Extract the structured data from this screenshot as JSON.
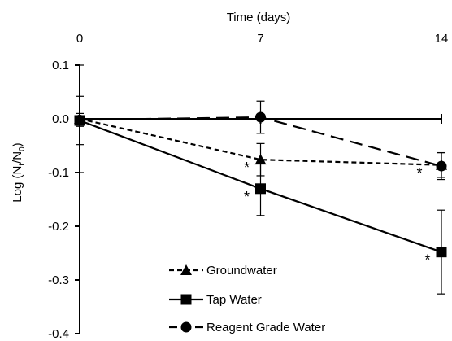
{
  "chart_data": {
    "type": "line",
    "xlabel": "Time (days)",
    "ylabel_main": "Log (N",
    "ylabel_sub_t": "t",
    "ylabel_mid": "/N",
    "ylabel_sub_0": "0",
    "ylabel_end": ")",
    "x": [
      0,
      7,
      14
    ],
    "xticks": [
      "0",
      "7",
      "14"
    ],
    "xlim": [
      0,
      14
    ],
    "ylim": [
      -0.4,
      0.1
    ],
    "yticks": [
      "0.1",
      "0.0",
      "-0.1",
      "-0.2",
      "-0.3",
      "-0.4"
    ],
    "ytick_values": [
      0.1,
      0.0,
      -0.1,
      -0.2,
      -0.3,
      -0.4
    ],
    "x_axis_position": "top",
    "grid": false,
    "legend_position": "bottom-center",
    "series": [
      {
        "name": "Groundwater",
        "marker": "triangle",
        "line": "short-dash",
        "values": [
          0.0,
          -0.076,
          -0.086
        ],
        "error": [
          0.1,
          0.03,
          0.023
        ],
        "significance": [
          "",
          "*",
          "*"
        ]
      },
      {
        "name": "Tap Water",
        "marker": "square",
        "line": "solid",
        "values": [
          -0.003,
          -0.13,
          -0.248
        ],
        "error": [
          0.045,
          0.05,
          0.078
        ],
        "significance": [
          "",
          "*",
          "*"
        ]
      },
      {
        "name": "Reagent Grade Water",
        "marker": "circle",
        "line": "long-dash",
        "values": [
          -0.002,
          0.003,
          -0.088
        ],
        "error": [
          0.012,
          0.03,
          0.025
        ],
        "significance": [
          "",
          "",
          ""
        ]
      }
    ]
  }
}
